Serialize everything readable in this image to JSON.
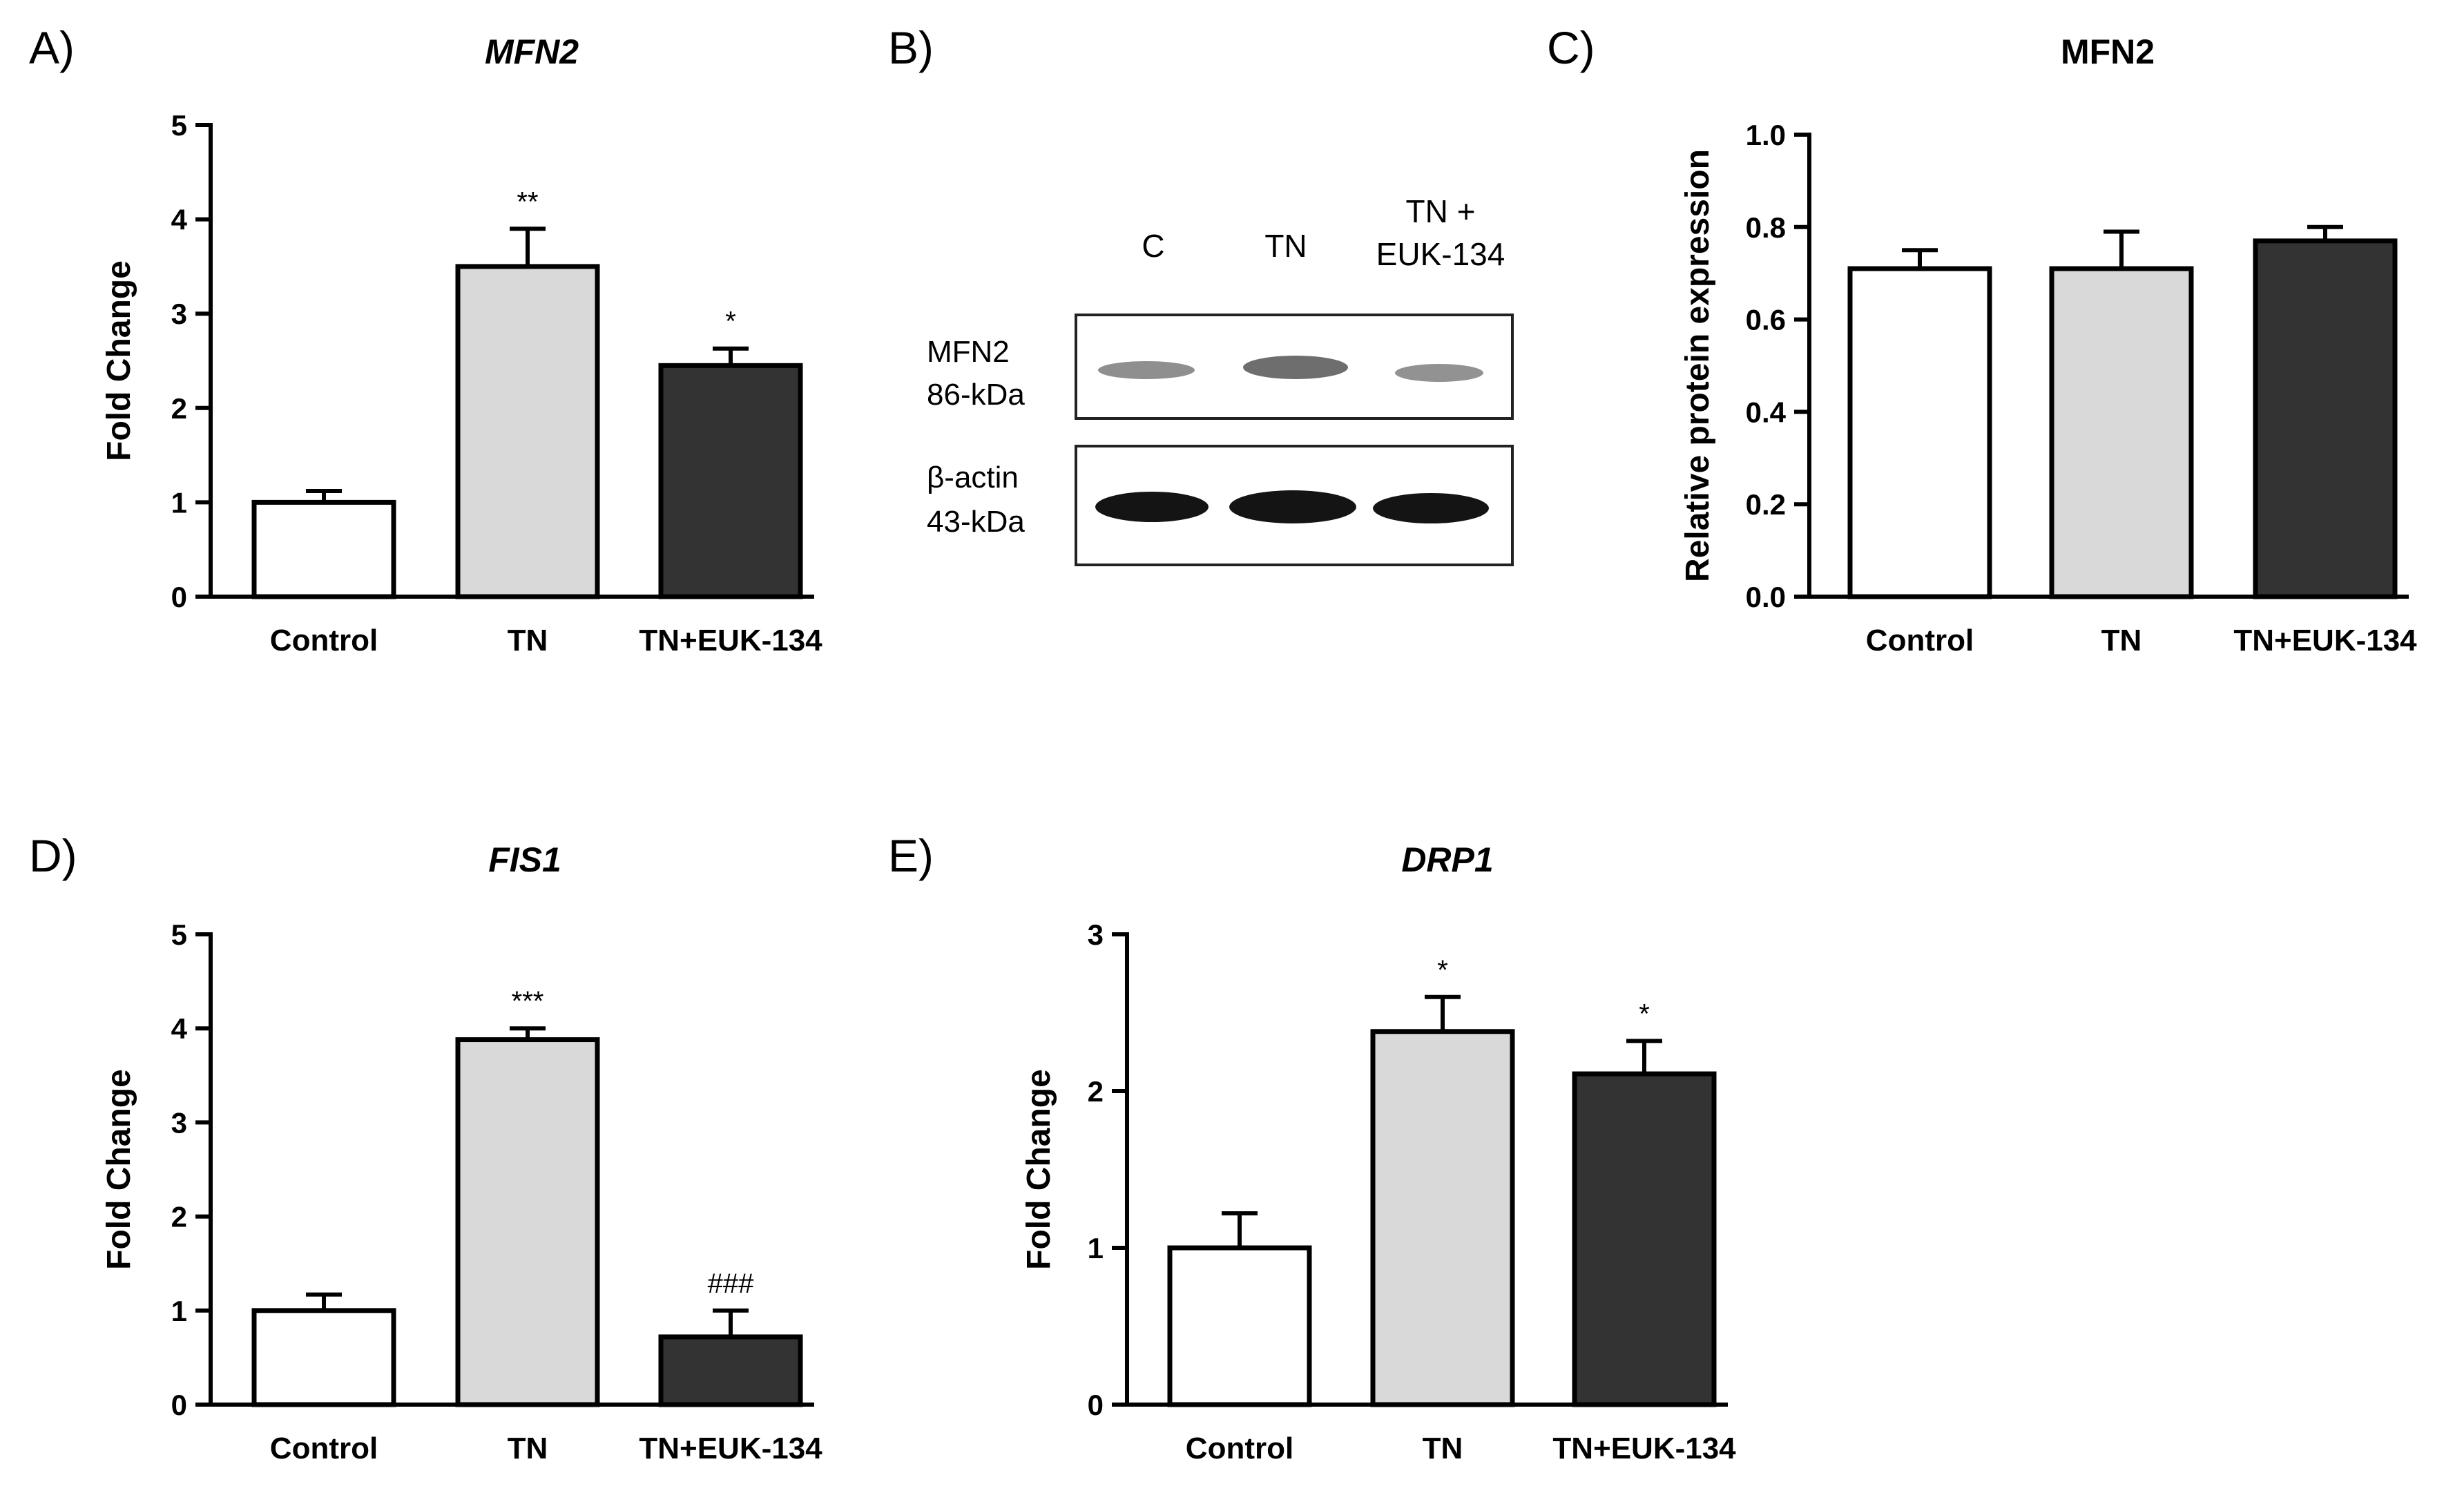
{
  "panels": {
    "A": {
      "letter": "A)"
    },
    "B": {
      "letter": "B)"
    },
    "C": {
      "letter": "C)"
    },
    "D": {
      "letter": "D)"
    },
    "E": {
      "letter": "E)"
    }
  },
  "colors": {
    "control": "#ffffff",
    "tn": "#d9d9d9",
    "tn_euk": "#333333"
  },
  "chart_data": [
    {
      "id": "A",
      "type": "bar",
      "title": "MFN2",
      "title_italic": true,
      "xlabel": "",
      "ylabel": "Fold Change",
      "categories": [
        "Control",
        "TN",
        "TN+EUK-134"
      ],
      "values": [
        1.0,
        3.5,
        2.45
      ],
      "errors": [
        0.12,
        0.4,
        0.18
      ],
      "significance": [
        "",
        "**",
        "*"
      ],
      "ylim": [
        0,
        5
      ],
      "yticks": [
        0,
        1,
        2,
        3,
        4,
        5
      ],
      "ytick_labels": [
        "0",
        "1",
        "2",
        "3",
        "4",
        "5"
      ]
    },
    {
      "id": "C",
      "type": "bar",
      "title": "MFN2",
      "title_italic": false,
      "xlabel": "",
      "ylabel": "Relative protein expression",
      "categories": [
        "Control",
        "TN",
        "TN+EUK-134"
      ],
      "values": [
        0.71,
        0.71,
        0.77
      ],
      "errors": [
        0.04,
        0.08,
        0.03
      ],
      "significance": [
        "",
        "",
        ""
      ],
      "ylim": [
        0,
        1.0
      ],
      "yticks": [
        0,
        0.2,
        0.4,
        0.6,
        0.8,
        1.0
      ],
      "ytick_labels": [
        "0.0",
        "0.2",
        "0.4",
        "0.6",
        "0.8",
        "1.0"
      ]
    },
    {
      "id": "D",
      "type": "bar",
      "title": "FIS1",
      "title_italic": true,
      "xlabel": "",
      "ylabel": "Fold Change",
      "categories": [
        "Control",
        "TN",
        "TN+EUK-134"
      ],
      "values": [
        1.0,
        3.88,
        0.72
      ],
      "errors": [
        0.17,
        0.12,
        0.28
      ],
      "significance": [
        "",
        "***",
        "###"
      ],
      "ylim": [
        0,
        5
      ],
      "yticks": [
        0,
        1,
        2,
        3,
        4,
        5
      ],
      "ytick_labels": [
        "0",
        "1",
        "2",
        "3",
        "4",
        "5"
      ]
    },
    {
      "id": "E",
      "type": "bar",
      "title": "DRP1",
      "title_italic": true,
      "xlabel": "",
      "ylabel": "Fold Change",
      "categories": [
        "Control",
        "TN",
        "TN+EUK-134"
      ],
      "values": [
        1.0,
        2.38,
        2.11
      ],
      "errors": [
        0.22,
        0.22,
        0.21
      ],
      "significance": [
        "",
        "*",
        "*"
      ],
      "ylim": [
        0,
        3
      ],
      "yticks": [
        0,
        1,
        2,
        3
      ],
      "ytick_labels": [
        "0",
        "1",
        "2",
        "3"
      ]
    }
  ],
  "blot": {
    "lanes": [
      "C",
      "TN",
      "TN +",
      "EUK-134"
    ],
    "mfn2_label": "MFN2",
    "mfn2_kda": "86-kDa",
    "actin_label": "β-actin",
    "actin_kda": "43-kDa"
  }
}
